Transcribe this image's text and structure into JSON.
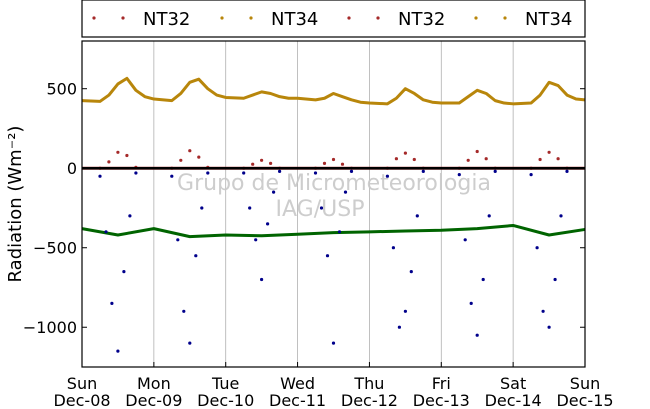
{
  "chart_data": {
    "type": "scatter",
    "title": "",
    "ylabel": "Radiation (Wm⁻²)",
    "xlabel": "",
    "ylim": [
      -1250,
      800
    ],
    "yticks": [
      500,
      0,
      -500,
      -1000
    ],
    "ytick_labels": [
      "500",
      "0",
      "−500",
      "−1000"
    ],
    "xlim": [
      "2014-12-08",
      "2014-12-15"
    ],
    "x_ticks": [
      {
        "day": "Sun",
        "date": "Dec-08"
      },
      {
        "day": "Mon",
        "date": "Dec-09"
      },
      {
        "day": "Tue",
        "date": "Dec-10"
      },
      {
        "day": "Wed",
        "date": "Dec-11"
      },
      {
        "day": "Thu",
        "date": "Dec-12"
      },
      {
        "day": "Fri",
        "date": "Dec-13"
      },
      {
        "day": "Sat",
        "date": "Dec-14"
      },
      {
        "day": "Sun",
        "date": "Dec-15"
      }
    ],
    "grid": "vertical",
    "legend_position": "top",
    "watermark": [
      "Grupo de Micrometeorologia",
      "IAG/USP"
    ],
    "legend": [
      {
        "label": "NT32",
        "color": "#a52a2a"
      },
      {
        "label": "NT34",
        "color": "#b8860b"
      },
      {
        "label": "NT32",
        "color": "#a52a2a"
      },
      {
        "label": "NT34",
        "color": "#b8860b"
      }
    ],
    "series": [
      {
        "color": "#b8860b",
        "points": [
          [
            "2014-12-08 00:00",
            425
          ],
          [
            "2014-12-08 06:00",
            420
          ],
          [
            "2014-12-08 09:00",
            460
          ],
          [
            "2014-12-08 12:00",
            530
          ],
          [
            "2014-12-08 15:00",
            565
          ],
          [
            "2014-12-08 18:00",
            490
          ],
          [
            "2014-12-08 21:00",
            450
          ],
          [
            "2014-12-09 00:00",
            435
          ],
          [
            "2014-12-09 06:00",
            425
          ],
          [
            "2014-12-09 09:00",
            470
          ],
          [
            "2014-12-09 12:00",
            540
          ],
          [
            "2014-12-09 15:00",
            560
          ],
          [
            "2014-12-09 18:00",
            500
          ],
          [
            "2014-12-09 21:00",
            460
          ],
          [
            "2014-12-10 00:00",
            445
          ],
          [
            "2014-12-10 06:00",
            440
          ],
          [
            "2014-12-10 09:00",
            460
          ],
          [
            "2014-12-10 12:00",
            480
          ],
          [
            "2014-12-10 15:00",
            470
          ],
          [
            "2014-12-10 18:00",
            450
          ],
          [
            "2014-12-10 21:00",
            440
          ],
          [
            "2014-12-11 00:00",
            440
          ],
          [
            "2014-12-11 06:00",
            430
          ],
          [
            "2014-12-11 09:00",
            440
          ],
          [
            "2014-12-11 12:00",
            470
          ],
          [
            "2014-12-11 15:00",
            450
          ],
          [
            "2014-12-11 18:00",
            430
          ],
          [
            "2014-12-11 21:00",
            415
          ],
          [
            "2014-12-12 00:00",
            410
          ],
          [
            "2014-12-12 06:00",
            405
          ],
          [
            "2014-12-12 09:00",
            440
          ],
          [
            "2014-12-12 12:00",
            500
          ],
          [
            "2014-12-12 15:00",
            470
          ],
          [
            "2014-12-12 18:00",
            430
          ],
          [
            "2014-12-12 21:00",
            415
          ],
          [
            "2014-12-13 00:00",
            410
          ],
          [
            "2014-12-13 06:00",
            410
          ],
          [
            "2014-12-13 09:00",
            450
          ],
          [
            "2014-12-13 12:00",
            490
          ],
          [
            "2014-12-13 15:00",
            470
          ],
          [
            "2014-12-13 18:00",
            425
          ],
          [
            "2014-12-13 21:00",
            410
          ],
          [
            "2014-12-14 00:00",
            405
          ],
          [
            "2014-12-14 06:00",
            410
          ],
          [
            "2014-12-14 09:00",
            460
          ],
          [
            "2014-12-14 12:00",
            540
          ],
          [
            "2014-12-14 15:00",
            520
          ],
          [
            "2014-12-14 18:00",
            460
          ],
          [
            "2014-12-14 21:00",
            435
          ],
          [
            "2014-12-15 00:00",
            430
          ]
        ]
      },
      {
        "color": "#a52a2a",
        "points": [
          [
            "2014-12-08 06:00",
            0
          ],
          [
            "2014-12-08 09:00",
            40
          ],
          [
            "2014-12-08 12:00",
            100
          ],
          [
            "2014-12-08 15:00",
            80
          ],
          [
            "2014-12-08 18:00",
            5
          ],
          [
            "2014-12-09 06:00",
            0
          ],
          [
            "2014-12-09 09:00",
            50
          ],
          [
            "2014-12-09 12:00",
            110
          ],
          [
            "2014-12-09 15:00",
            70
          ],
          [
            "2014-12-09 18:00",
            5
          ],
          [
            "2014-12-10 06:00",
            0
          ],
          [
            "2014-12-10 09:00",
            25
          ],
          [
            "2014-12-10 12:00",
            50
          ],
          [
            "2014-12-10 15:00",
            30
          ],
          [
            "2014-12-10 18:00",
            0
          ],
          [
            "2014-12-11 06:00",
            0
          ],
          [
            "2014-12-11 09:00",
            30
          ],
          [
            "2014-12-11 12:00",
            55
          ],
          [
            "2014-12-11 15:00",
            25
          ],
          [
            "2014-12-11 18:00",
            0
          ],
          [
            "2014-12-12 06:00",
            0
          ],
          [
            "2014-12-12 09:00",
            60
          ],
          [
            "2014-12-12 12:00",
            95
          ],
          [
            "2014-12-12 15:00",
            55
          ],
          [
            "2014-12-12 18:00",
            0
          ],
          [
            "2014-12-13 06:00",
            0
          ],
          [
            "2014-12-13 09:00",
            50
          ],
          [
            "2014-12-13 12:00",
            105
          ],
          [
            "2014-12-13 15:00",
            60
          ],
          [
            "2014-12-13 18:00",
            0
          ],
          [
            "2014-12-14 06:00",
            0
          ],
          [
            "2014-12-14 09:00",
            55
          ],
          [
            "2014-12-14 12:00",
            100
          ],
          [
            "2014-12-14 15:00",
            60
          ],
          [
            "2014-12-14 18:00",
            0
          ]
        ]
      },
      {
        "color": "#000000",
        "points": [
          [
            "2014-12-08 00:00",
            0
          ],
          [
            "2014-12-15 00:00",
            0
          ]
        ]
      },
      {
        "color": "#006400",
        "points": [
          [
            "2014-12-08 00:00",
            -380
          ],
          [
            "2014-12-08 12:00",
            -420
          ],
          [
            "2014-12-09 00:00",
            -380
          ],
          [
            "2014-12-09 12:00",
            -430
          ],
          [
            "2014-12-10 00:00",
            -420
          ],
          [
            "2014-12-10 12:00",
            -425
          ],
          [
            "2014-12-11 00:00",
            -415
          ],
          [
            "2014-12-11 12:00",
            -405
          ],
          [
            "2014-12-12 00:00",
            -400
          ],
          [
            "2014-12-12 12:00",
            -395
          ],
          [
            "2014-12-13 00:00",
            -390
          ],
          [
            "2014-12-13 12:00",
            -380
          ],
          [
            "2014-12-14 00:00",
            -360
          ],
          [
            "2014-12-14 12:00",
            -420
          ],
          [
            "2014-12-15 00:00",
            -385
          ]
        ]
      },
      {
        "color": "#00008b",
        "points": [
          [
            "2014-12-08 06:00",
            -50
          ],
          [
            "2014-12-08 08:00",
            -400
          ],
          [
            "2014-12-08 10:00",
            -850
          ],
          [
            "2014-12-08 12:00",
            -1150
          ],
          [
            "2014-12-08 14:00",
            -650
          ],
          [
            "2014-12-08 16:00",
            -300
          ],
          [
            "2014-12-08 18:00",
            -30
          ],
          [
            "2014-12-09 06:00",
            -50
          ],
          [
            "2014-12-09 08:00",
            -450
          ],
          [
            "2014-12-09 10:00",
            -900
          ],
          [
            "2014-12-09 12:00",
            -1100
          ],
          [
            "2014-12-09 14:00",
            -550
          ],
          [
            "2014-12-09 16:00",
            -250
          ],
          [
            "2014-12-09 18:00",
            -30
          ],
          [
            "2014-12-10 06:00",
            -30
          ],
          [
            "2014-12-10 08:00",
            -250
          ],
          [
            "2014-12-10 10:00",
            -450
          ],
          [
            "2014-12-10 12:00",
            -700
          ],
          [
            "2014-12-10 14:00",
            -350
          ],
          [
            "2014-12-10 16:00",
            -150
          ],
          [
            "2014-12-10 18:00",
            -20
          ],
          [
            "2014-12-11 06:00",
            -30
          ],
          [
            "2014-12-11 08:00",
            -250
          ],
          [
            "2014-12-11 10:00",
            -550
          ],
          [
            "2014-12-11 12:00",
            -1100
          ],
          [
            "2014-12-11 14:00",
            -400
          ],
          [
            "2014-12-11 16:00",
            -150
          ],
          [
            "2014-12-11 18:00",
            -20
          ],
          [
            "2014-12-12 06:00",
            -50
          ],
          [
            "2014-12-12 08:00",
            -500
          ],
          [
            "2014-12-12 10:00",
            -1000
          ],
          [
            "2014-12-12 12:00",
            -900
          ],
          [
            "2014-12-12 14:00",
            -650
          ],
          [
            "2014-12-12 16:00",
            -300
          ],
          [
            "2014-12-12 18:00",
            -20
          ],
          [
            "2014-12-13 06:00",
            -40
          ],
          [
            "2014-12-13 08:00",
            -450
          ],
          [
            "2014-12-13 10:00",
            -850
          ],
          [
            "2014-12-13 12:00",
            -1050
          ],
          [
            "2014-12-13 14:00",
            -700
          ],
          [
            "2014-12-13 16:00",
            -300
          ],
          [
            "2014-12-13 18:00",
            -20
          ],
          [
            "2014-12-14 06:00",
            -40
          ],
          [
            "2014-12-14 08:00",
            -500
          ],
          [
            "2014-12-14 10:00",
            -900
          ],
          [
            "2014-12-14 12:00",
            -1000
          ],
          [
            "2014-12-14 14:00",
            -700
          ],
          [
            "2014-12-14 16:00",
            -300
          ],
          [
            "2014-12-14 18:00",
            -20
          ]
        ]
      }
    ]
  }
}
